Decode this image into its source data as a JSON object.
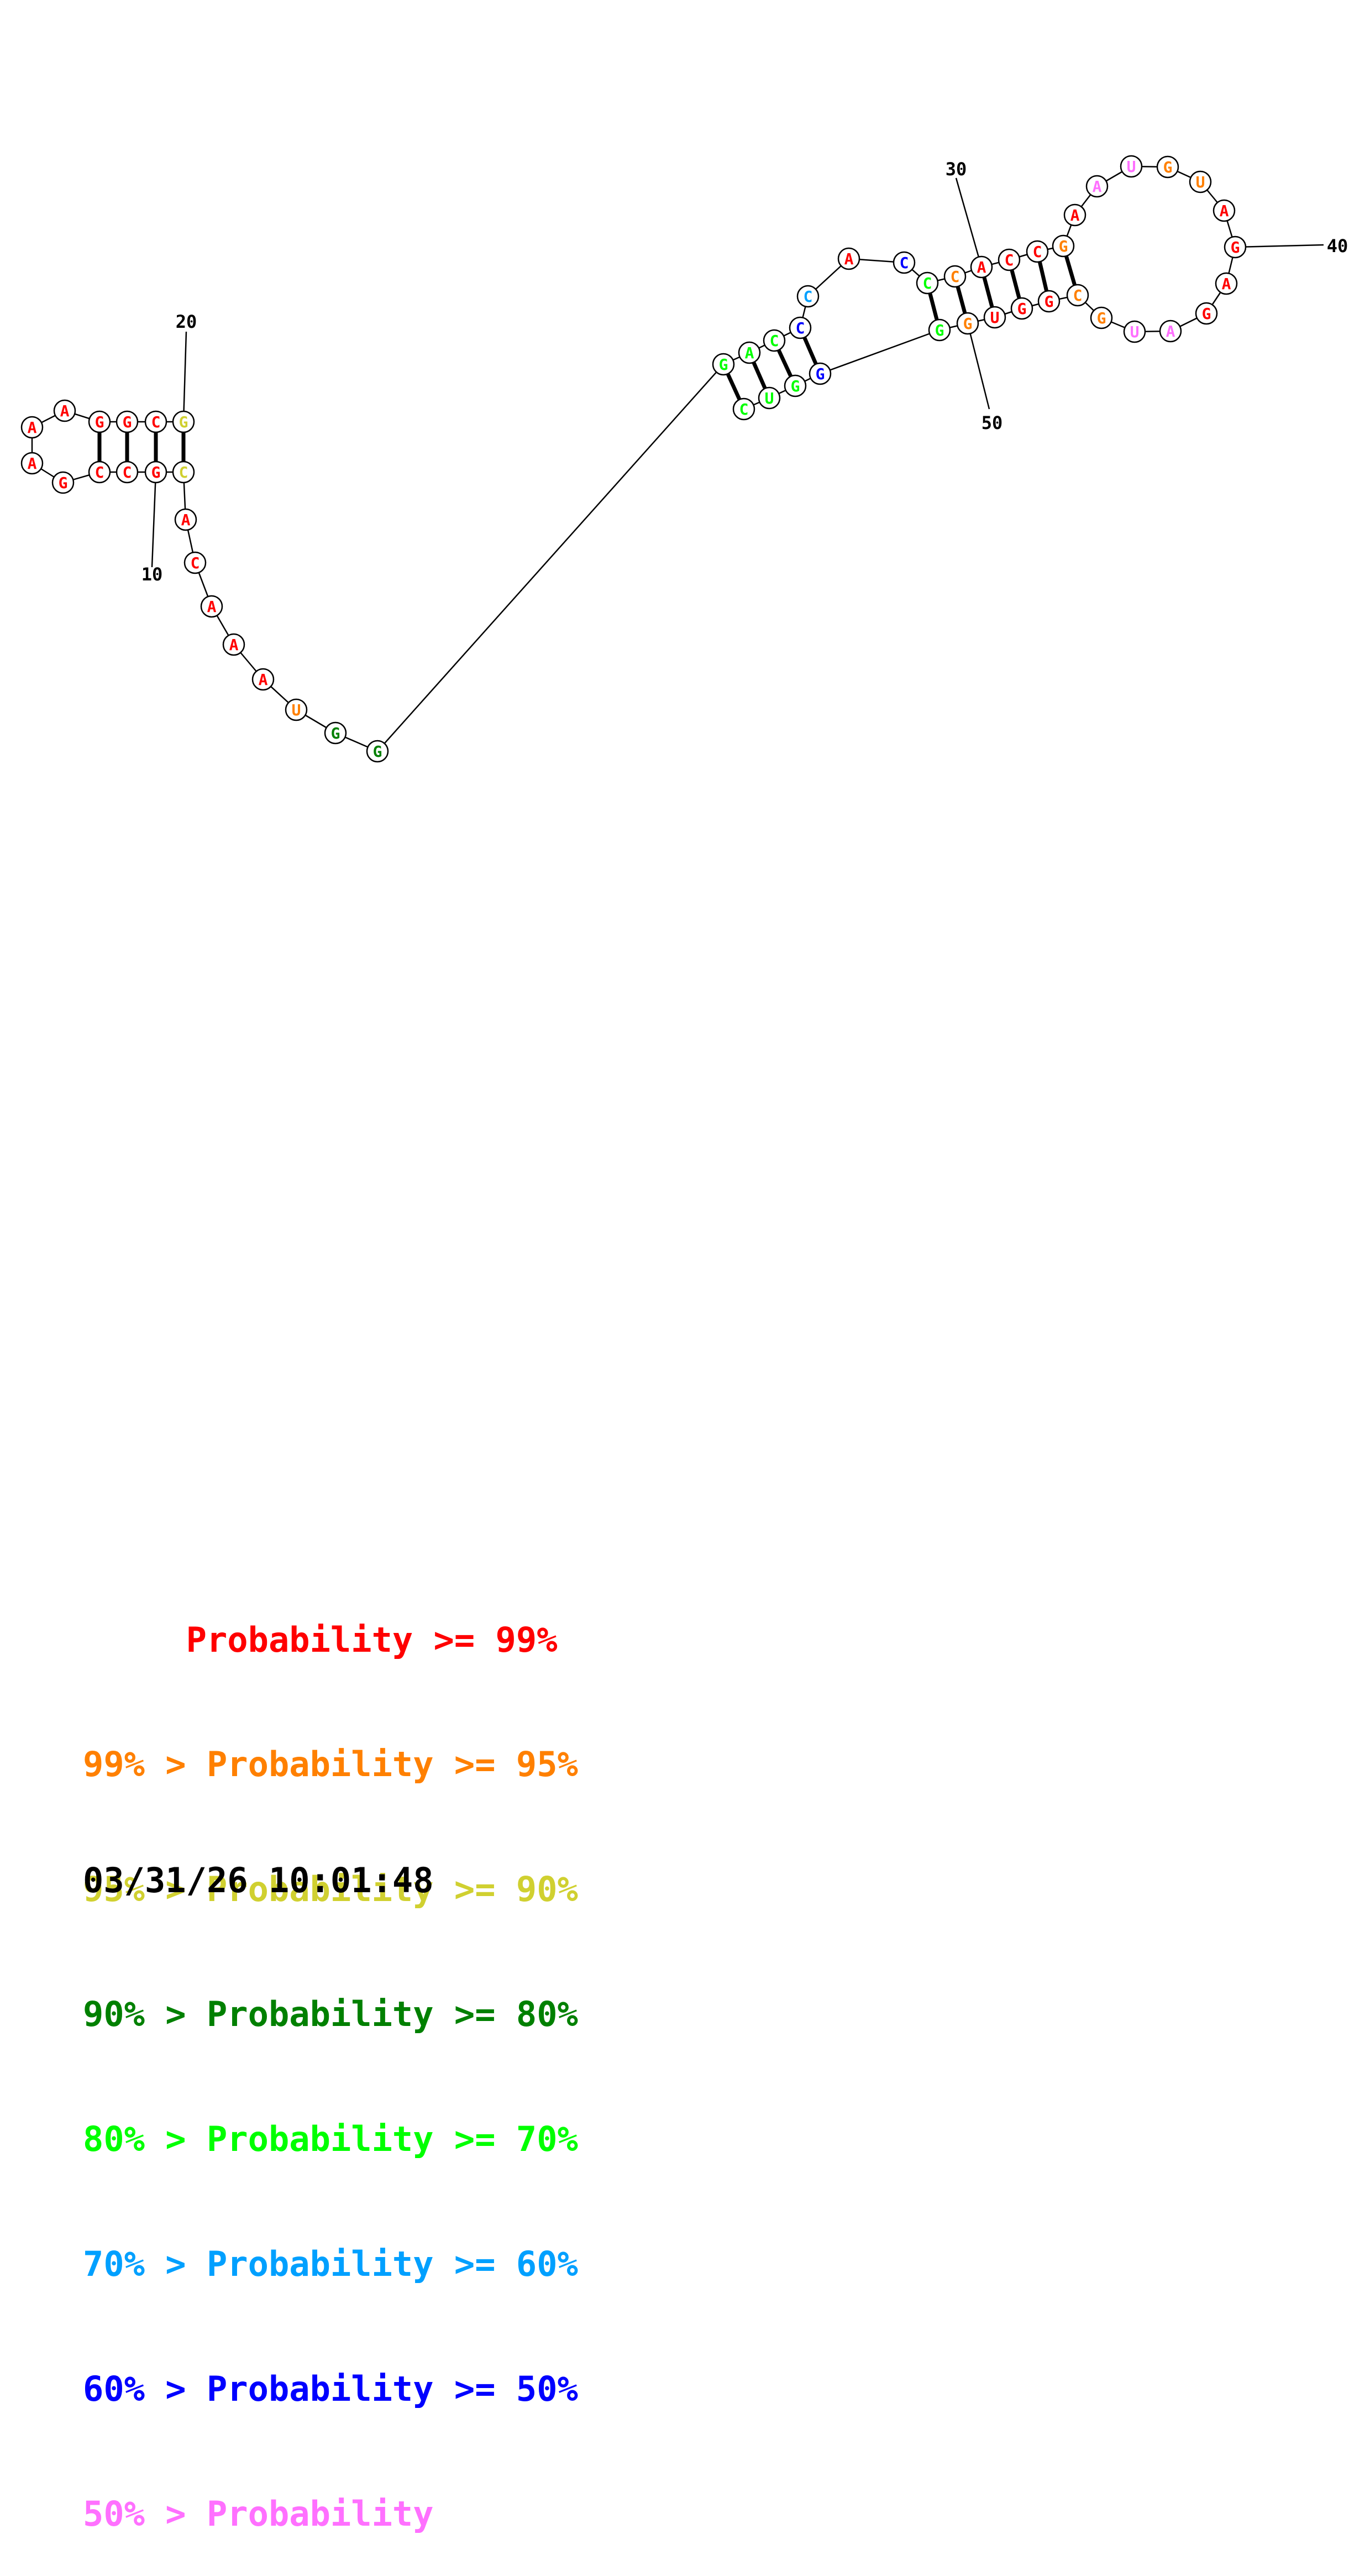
{
  "colors": {
    "p99": "#ff0000",
    "p95": "#ff8000",
    "p90": "#d0d030",
    "p80": "#008000",
    "p70": "#00ff00",
    "p60": "#00a0ff",
    "p50": "#0000ff",
    "plow": "#ff70ff",
    "outline": "#000000"
  },
  "structure": {
    "nucleotides": [
      {
        "n": 1,
        "base": "G",
        "prob": "p90"
      },
      {
        "n": 2,
        "base": "C",
        "prob": "p99"
      },
      {
        "n": 3,
        "base": "G",
        "prob": "p99"
      },
      {
        "n": 4,
        "base": "G",
        "prob": "p99"
      },
      {
        "n": 5,
        "base": "A",
        "prob": "p99"
      },
      {
        "n": 6,
        "base": "A",
        "prob": "p99"
      },
      {
        "n": 7,
        "base": "A",
        "prob": "p99"
      },
      {
        "n": 8,
        "base": "G",
        "prob": "p99"
      },
      {
        "n": 9,
        "base": "C",
        "prob": "p99"
      },
      {
        "n": 10,
        "base": "C",
        "prob": "p99"
      },
      {
        "n": 11,
        "base": "G",
        "prob": "p99"
      },
      {
        "n": 12,
        "base": "C",
        "prob": "p90"
      },
      {
        "n": 13,
        "base": "A",
        "prob": "p99"
      },
      {
        "n": 14,
        "base": "C",
        "prob": "p99"
      },
      {
        "n": 15,
        "base": "A",
        "prob": "p99"
      },
      {
        "n": 16,
        "base": "A",
        "prob": "p99"
      },
      {
        "n": 17,
        "base": "A",
        "prob": "p99"
      },
      {
        "n": 18,
        "base": "U",
        "prob": "p95"
      },
      {
        "n": 19,
        "base": "G",
        "prob": "p80"
      },
      {
        "n": 20,
        "base": "G",
        "prob": "p80"
      },
      {
        "n": 21,
        "base": "G",
        "prob": "p70"
      },
      {
        "n": 22,
        "base": "A",
        "prob": "p70"
      },
      {
        "n": 23,
        "base": "C",
        "prob": "p70"
      },
      {
        "n": 24,
        "base": "C",
        "prob": "p50"
      },
      {
        "n": 25,
        "base": "C",
        "prob": "p60"
      },
      {
        "n": 26,
        "base": "A",
        "prob": "p99"
      },
      {
        "n": 27,
        "base": "C",
        "prob": "p50"
      },
      {
        "n": 28,
        "base": "C",
        "prob": "p70"
      },
      {
        "n": 29,
        "base": "C",
        "prob": "p95"
      },
      {
        "n": 30,
        "base": "A",
        "prob": "p99"
      },
      {
        "n": 31,
        "base": "C",
        "prob": "p99"
      },
      {
        "n": 32,
        "base": "C",
        "prob": "p99"
      },
      {
        "n": 33,
        "base": "G",
        "prob": "p95"
      },
      {
        "n": 34,
        "base": "A",
        "prob": "p99"
      },
      {
        "n": 35,
        "base": "A",
        "prob": "plow"
      },
      {
        "n": 36,
        "base": "U",
        "prob": "plow"
      },
      {
        "n": 37,
        "base": "G",
        "prob": "p95"
      },
      {
        "n": 38,
        "base": "U",
        "prob": "p95"
      },
      {
        "n": 39,
        "base": "A",
        "prob": "p99"
      },
      {
        "n": 40,
        "base": "G",
        "prob": "p99"
      },
      {
        "n": 41,
        "base": "A",
        "prob": "p99"
      },
      {
        "n": 42,
        "base": "G",
        "prob": "p99"
      },
      {
        "n": 43,
        "base": "A",
        "prob": "plow"
      },
      {
        "n": 44,
        "base": "U",
        "prob": "plow"
      },
      {
        "n": 45,
        "base": "G",
        "prob": "p95"
      },
      {
        "n": 46,
        "base": "C",
        "prob": "p95"
      },
      {
        "n": 47,
        "base": "G",
        "prob": "p99"
      },
      {
        "n": 48,
        "base": "G",
        "prob": "p99"
      },
      {
        "n": 49,
        "base": "U",
        "prob": "p99"
      },
      {
        "n": 50,
        "base": "G",
        "prob": "p95"
      },
      {
        "n": 51,
        "base": "G",
        "prob": "p70"
      },
      {
        "n": 52,
        "base": "G",
        "prob": "p50"
      },
      {
        "n": 53,
        "base": "G",
        "prob": "p70"
      },
      {
        "n": 54,
        "base": "U",
        "prob": "p70"
      },
      {
        "n": 55,
        "base": "C",
        "prob": "p70"
      }
    ],
    "pairs": [
      [
        1,
        12
      ],
      [
        2,
        11
      ],
      [
        3,
        10
      ],
      [
        4,
        9
      ],
      [
        21,
        55
      ],
      [
        22,
        54
      ],
      [
        23,
        53
      ],
      [
        24,
        52
      ],
      [
        28,
        51
      ],
      [
        29,
        50
      ],
      [
        30,
        49
      ],
      [
        31,
        48
      ],
      [
        32,
        47
      ],
      [
        33,
        46
      ]
    ],
    "position_labels": [
      "10",
      "20",
      "30",
      "40",
      "50"
    ]
  },
  "legend": [
    {
      "text": "     Probability >= 99%",
      "color": "p99"
    },
    {
      "text": "99% > Probability >= 95%",
      "color": "p95"
    },
    {
      "text": "95% > Probability >= 90%",
      "color": "p90"
    },
    {
      "text": "90% > Probability >= 80%",
      "color": "p80"
    },
    {
      "text": "80% > Probability >= 70%",
      "color": "p70"
    },
    {
      "text": "70% > Probability >= 60%",
      "color": "p60"
    },
    {
      "text": "60% > Probability >= 50%",
      "color": "p50"
    },
    {
      "text": "50% > Probability",
      "color": "plow"
    }
  ],
  "timestamp": "03/31/26 10:01:48"
}
